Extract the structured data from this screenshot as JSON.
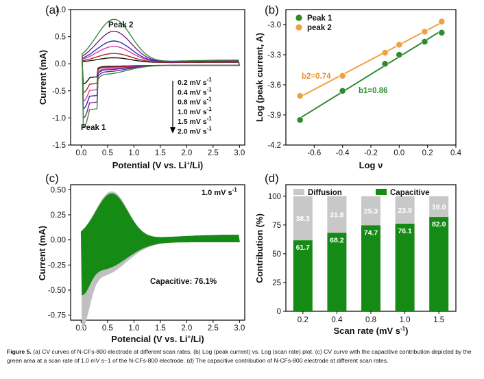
{
  "chart_data": [
    {
      "panel": "(a)",
      "type": "line",
      "xlabel": "Potential (V vs. Li",
      "xlabel_sup": "+",
      "xlabel_end": "/Li)",
      "ylabel": "Current (mA)",
      "xlim": [
        -0.2,
        3.1
      ],
      "ylim": [
        -1.5,
        1.0
      ],
      "xticks": [
        "0.0",
        "0.5",
        "1.0",
        "1.5",
        "2.0",
        "2.5",
        "3.0"
      ],
      "yticks": [
        "1.0",
        "0.5",
        "0.0",
        "-0.5",
        "-1.0",
        "-1.5"
      ],
      "peak2_label": "Peak 2",
      "peak1_label": "Peak 1",
      "series": [
        {
          "name": "0.2 mV s",
          "name_sup": "-1",
          "color": "#111111",
          "peak_anodic": 0.09,
          "peak_cathodic": -0.33
        },
        {
          "name": "0.4 mV s",
          "name_sup": "-1",
          "color": "#b22222",
          "peak_anodic": 0.17,
          "peak_cathodic": -0.48
        },
        {
          "name": "0.8 mV s",
          "name_sup": "-1",
          "color": "#e03aa0",
          "peak_anodic": 0.3,
          "peak_cathodic": -0.62
        },
        {
          "name": "1.0 mV s",
          "name_sup": "-1",
          "color": "#2a2ab8",
          "peak_anodic": 0.4,
          "peak_cathodic": -0.75
        },
        {
          "name": "1.5 mV s",
          "name_sup": "-1",
          "color": "#7a1f8c",
          "peak_anodic": 0.58,
          "peak_cathodic": -0.9
        },
        {
          "name": "2.0 mV s",
          "name_sup": "-1",
          "color": "#3a8a3a",
          "peak_anodic": 0.8,
          "peak_cathodic": -1.05
        }
      ]
    },
    {
      "panel": "(b)",
      "type": "scatter",
      "xlabel": "Log ν",
      "ylabel": "Log (peak current, A)",
      "xlim": [
        -0.8,
        0.4
      ],
      "ylim": [
        -4.2,
        -2.85
      ],
      "xticks": [
        "-0.6",
        "-0.4",
        "-0.2",
        "0.0",
        "0.2",
        "0.4"
      ],
      "yticks": [
        "-3.0",
        "-3.3",
        "-3.6",
        "-3.9",
        "-4.2"
      ],
      "series": [
        {
          "name": "Peak 1",
          "color": "#2e8b2e",
          "fit_label": "b1=0.86",
          "x": [
            -0.7,
            -0.4,
            -0.1,
            0.0,
            0.18,
            0.3
          ],
          "y": [
            -3.95,
            -3.66,
            -3.39,
            -3.3,
            -3.17,
            -3.08
          ]
        },
        {
          "name": "peak 2",
          "color": "#f0a040",
          "fit_label": "b2=0.74",
          "x": [
            -0.7,
            -0.4,
            -0.1,
            0.0,
            0.18,
            0.3
          ],
          "y": [
            -3.71,
            -3.51,
            -3.28,
            -3.2,
            -3.07,
            -2.97
          ]
        }
      ]
    },
    {
      "panel": "(c)",
      "type": "area",
      "xlabel": "Potencial (V vs. Li",
      "xlabel_sup": "+",
      "xlabel_end": "/Li)",
      "ylabel": "Current (mA)",
      "xlim": [
        -0.2,
        3.1
      ],
      "ylim": [
        -0.8,
        0.55
      ],
      "xticks": [
        "0.0",
        "0.5",
        "1.0",
        "1.5",
        "2.0",
        "2.5",
        "3.0"
      ],
      "yticks": [
        "0.50",
        "0.25",
        "0.00",
        "-0.25",
        "-0.50",
        "-0.75"
      ],
      "rate_label": "1.0 mV s",
      "rate_sup": "-1",
      "capacitive_label": "Capacitive: 76.1%",
      "colors": {
        "total": "#c0c0c0",
        "capacitive": "#158a15"
      }
    },
    {
      "panel": "(d)",
      "type": "bar",
      "xlabel": "Scan rate (mV s",
      "xlabel_sup": "-1",
      "xlabel_end": ")",
      "ylabel": "Contribution (%)",
      "ylim": [
        0,
        110
      ],
      "yticks": [
        "0",
        "25",
        "50",
        "75",
        "100"
      ],
      "categories": [
        "0.2",
        "0.4",
        "0.8",
        "1.0",
        "1.5"
      ],
      "series": [
        {
          "name": "Capacitive",
          "color": "#158a15",
          "values": [
            61.7,
            68.2,
            74.7,
            76.1,
            82.0
          ]
        },
        {
          "name": "Diffusion",
          "color": "#c8c8c8",
          "values": [
            38.3,
            31.8,
            25.3,
            23.9,
            18.0
          ]
        }
      ]
    }
  ],
  "caption": {
    "label": "Figure 5.",
    "text": " (a) CV curves of N-CFs-800 electrode at different scan rates. (b) Log (peak current) vs. Log (scan rate) plot. (c) CV curve with the capacitive contribution depicted by the green area at a scan rate of 1.0 mV s−1 of the N-CFs-800 electrode. (d) The capacitive contribution of N-CFs-800 electrode at different scan rates."
  }
}
